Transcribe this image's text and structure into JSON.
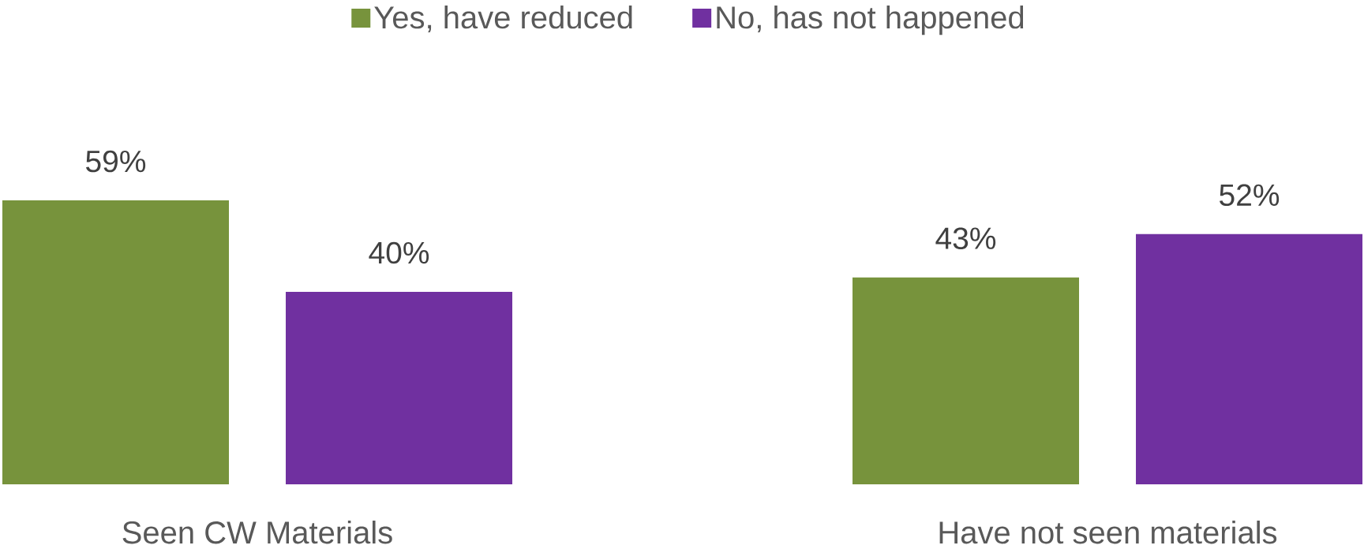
{
  "chart_data": {
    "type": "bar",
    "categories": [
      "Seen CW Materials",
      "Have not seen materials"
    ],
    "series": [
      {
        "name": "Yes, have reduced",
        "color": "#77933c",
        "values": [
          59,
          43
        ],
        "value_labels": [
          "59%",
          "43%"
        ]
      },
      {
        "name": "No, has not happened",
        "color": "#7030a0",
        "values": [
          40,
          52
        ],
        "value_labels": [
          "40%",
          "52%"
        ]
      }
    ],
    "legend": "top"
  }
}
